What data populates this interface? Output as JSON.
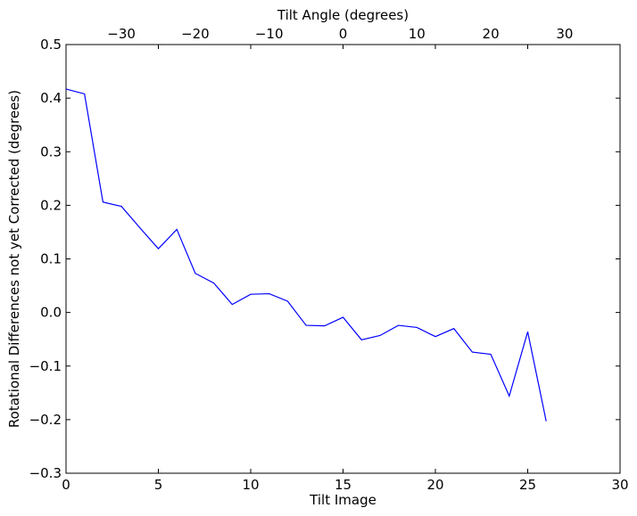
{
  "chart_data": {
    "type": "line",
    "xlabel": "Tilt Image",
    "ylabel": "Rotational Differences not yet Corrected (degrees)",
    "top_xlabel": "Tilt Angle (degrees)",
    "xlim": [
      0,
      30
    ],
    "ylim": [
      -0.3,
      0.5
    ],
    "top_xlim": [
      -37.5,
      37.5
    ],
    "x_ticks": [
      0,
      5,
      10,
      15,
      20,
      25,
      30
    ],
    "x_tick_labels": [
      "0",
      "5",
      "10",
      "15",
      "20",
      "25",
      "30"
    ],
    "y_ticks": [
      -0.3,
      -0.2,
      -0.1,
      0.0,
      0.1,
      0.2,
      0.3,
      0.4,
      0.5
    ],
    "y_tick_labels": [
      "−0.3",
      "−0.2",
      "−0.1",
      "0.0",
      "0.1",
      "0.2",
      "0.3",
      "0.4",
      "0.5"
    ],
    "top_x_ticks": [
      -30,
      -20,
      -10,
      0,
      10,
      20,
      30
    ],
    "top_x_tick_labels": [
      "−30",
      "−20",
      "−10",
      "0",
      "10",
      "20",
      "30"
    ],
    "grid": false,
    "series": [
      {
        "color": "#0000ff",
        "x": [
          0,
          1,
          2,
          3,
          4,
          5,
          6,
          7,
          8,
          9,
          10,
          11,
          12,
          13,
          14,
          15,
          16,
          17,
          18,
          19,
          20,
          21,
          22,
          23,
          24,
          25,
          26
        ],
        "values": [
          0.417,
          0.408,
          0.206,
          0.198,
          0.158,
          0.119,
          0.155,
          0.073,
          0.055,
          0.015,
          0.034,
          0.035,
          0.021,
          -0.024,
          -0.025,
          -0.009,
          -0.051,
          -0.043,
          -0.024,
          -0.028,
          -0.045,
          -0.03,
          -0.074,
          -0.078,
          -0.156,
          -0.036,
          -0.203
        ]
      }
    ]
  }
}
